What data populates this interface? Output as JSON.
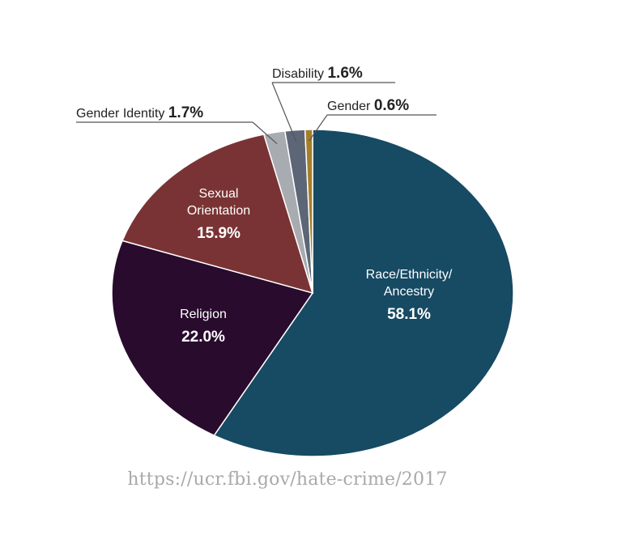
{
  "chart_data": {
    "type": "pie",
    "title": "",
    "slices": [
      {
        "label": "Race/Ethnicity/ Ancestry",
        "lines": [
          "Race/Ethnicity/",
          "Ancestry"
        ],
        "value": 58.1,
        "display": "58.1%",
        "color": "#174a63",
        "placement": "inside"
      },
      {
        "label": "Religion",
        "lines": [
          "Religion"
        ],
        "value": 22.0,
        "display": "22.0%",
        "color": "#290b2d",
        "placement": "inside"
      },
      {
        "label": "Sexual Orientation",
        "lines": [
          "Sexual",
          "Orientation"
        ],
        "value": 15.9,
        "display": "15.9%",
        "color": "#7a3334",
        "placement": "inside"
      },
      {
        "label": "Gender Identity",
        "lines": [
          "Gender Identity"
        ],
        "value": 1.7,
        "display": "1.7%",
        "color": "#a8abb0",
        "placement": "outside-left"
      },
      {
        "label": "Disability",
        "lines": [
          "Disability"
        ],
        "value": 1.6,
        "display": "1.6%",
        "color": "#5c6677",
        "placement": "outside-top"
      },
      {
        "label": "Gender",
        "lines": [
          "Gender"
        ],
        "value": 0.6,
        "display": "0.6%",
        "color": "#a47f2b",
        "placement": "outside-right"
      }
    ]
  },
  "source_url": "https://ucr.fbi.gov/hate-crime/2017"
}
